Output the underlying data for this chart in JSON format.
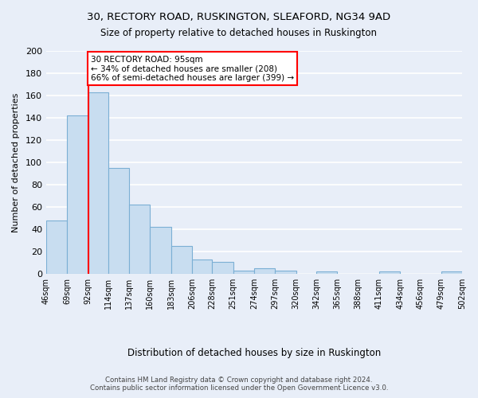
{
  "title1": "30, RECTORY ROAD, RUSKINGTON, SLEAFORD, NG34 9AD",
  "title2": "Size of property relative to detached houses in Ruskington",
  "xlabel": "Distribution of detached houses by size in Ruskington",
  "ylabel": "Number of detached properties",
  "bar_color": "#c8ddf0",
  "bar_edge_color": "#7bafd4",
  "background_color": "#e8eef8",
  "grid_color": "#ffffff",
  "bin_edges": [
    46,
    69,
    92,
    114,
    137,
    160,
    183,
    206,
    228,
    251,
    274,
    297,
    320,
    342,
    365,
    388,
    411,
    434,
    456,
    479,
    502
  ],
  "bin_labels": [
    "46sqm",
    "69sqm",
    "92sqm",
    "114sqm",
    "137sqm",
    "160sqm",
    "183sqm",
    "206sqm",
    "228sqm",
    "251sqm",
    "274sqm",
    "297sqm",
    "320sqm",
    "342sqm",
    "365sqm",
    "388sqm",
    "411sqm",
    "434sqm",
    "456sqm",
    "479sqm",
    "502sqm"
  ],
  "bar_heights": [
    48,
    142,
    163,
    95,
    62,
    42,
    25,
    13,
    11,
    3,
    5,
    3,
    0,
    2,
    0,
    0,
    2,
    0,
    0,
    2
  ],
  "property_line_x": 92,
  "annotation_lines": [
    "30 RECTORY ROAD: 95sqm",
    "← 34% of detached houses are smaller (208)",
    "66% of semi-detached houses are larger (399) →"
  ],
  "footer1": "Contains HM Land Registry data © Crown copyright and database right 2024.",
  "footer2": "Contains public sector information licensed under the Open Government Licence v3.0.",
  "ylim": [
    0,
    200
  ],
  "yticks": [
    0,
    20,
    40,
    60,
    80,
    100,
    120,
    140,
    160,
    180,
    200
  ]
}
